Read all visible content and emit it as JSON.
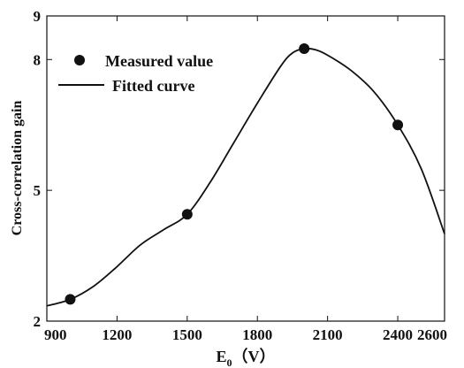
{
  "chart_data": {
    "type": "scatter",
    "xlabel": "E",
    "xlabel_sub": "0",
    "xlabel_unit": "（V）",
    "ylabel": "Cross-correlation gain",
    "xlim": [
      900,
      2600
    ],
    "ylim": [
      2,
      9
    ],
    "xticks": [
      900,
      1200,
      1500,
      1800,
      2100,
      2400,
      2600
    ],
    "yticks": [
      2,
      5,
      8,
      9
    ],
    "grid": false,
    "legend_position": "top-left",
    "series": [
      {
        "name": "Measured value",
        "kind": "marker",
        "x": [
          1000,
          1500,
          2000,
          2400
        ],
        "y": [
          2.5,
          4.45,
          8.25,
          6.5
        ]
      },
      {
        "name": "Fitted curve",
        "kind": "line",
        "x": [
          900,
          1000,
          1100,
          1200,
          1300,
          1400,
          1500,
          1600,
          1700,
          1800,
          1900,
          1950,
          2000,
          2050,
          2100,
          2200,
          2300,
          2400,
          2500,
          2600
        ],
        "y": [
          2.35,
          2.5,
          2.8,
          3.25,
          3.75,
          4.1,
          4.45,
          5.2,
          6.1,
          7.0,
          7.85,
          8.15,
          8.25,
          8.22,
          8.1,
          7.75,
          7.25,
          6.5,
          5.5,
          4.0
        ]
      }
    ]
  }
}
